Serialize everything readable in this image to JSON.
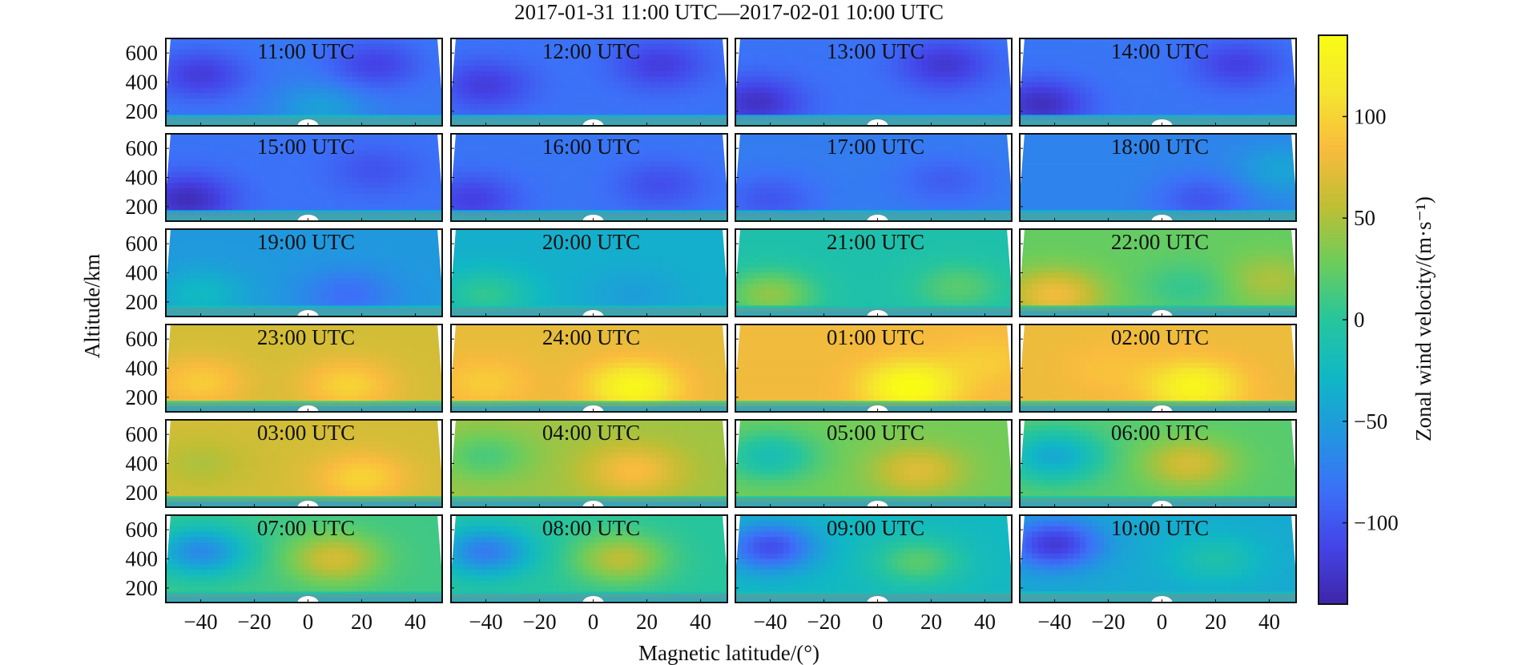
{
  "chart_data": {
    "type": "heatmap",
    "title": "2017-01-31 11:00 UTC—2017-02-01 10:00 UTC",
    "xlabel": "Magnetic latitude/(°)",
    "ylabel": "Altitude/km",
    "colorbar_label": "Zonal wind velocity/(m·s⁻¹)",
    "grid_rows": 6,
    "grid_cols": 4,
    "xlim": [
      -53,
      50
    ],
    "ylim": [
      100,
      700
    ],
    "x_ticks": [
      -40,
      -20,
      0,
      20,
      40
    ],
    "x_tick_labels": [
      "−40",
      "−20",
      "0",
      "20",
      "40"
    ],
    "y_ticks": [
      200,
      400,
      600
    ],
    "y_tick_labels": [
      "200",
      "400",
      "600"
    ],
    "colorbar": {
      "min": -140,
      "max": 140,
      "ticks": [
        100,
        50,
        0,
        -50,
        -100
      ],
      "tick_labels": [
        "100",
        "50",
        "0",
        "−50",
        "−100"
      ],
      "colormap": "parula",
      "colors": [
        "#3e26a8",
        "#4443e7",
        "#3c70f8",
        "#2197df",
        "#10b7c5",
        "#26c59d",
        "#6ccd5b",
        "#c0be34",
        "#f9bb3e",
        "#f5e52f",
        "#f9fb15"
      ]
    },
    "panels": [
      {
        "label": "11:00 UTC",
        "mean": -78,
        "anomalies": [
          {
            "lat": -40,
            "alt": 450,
            "value": -40
          },
          {
            "lat": 25,
            "alt": 520,
            "value": -35
          },
          {
            "lat": 5,
            "alt": 220,
            "value": 30
          }
        ]
      },
      {
        "label": "12:00 UTC",
        "mean": -82,
        "anomalies": [
          {
            "lat": -40,
            "alt": 380,
            "value": -35
          },
          {
            "lat": 25,
            "alt": 520,
            "value": -35
          }
        ]
      },
      {
        "label": "13:00 UTC",
        "mean": -82,
        "anomalies": [
          {
            "lat": -45,
            "alt": 260,
            "value": -45
          },
          {
            "lat": 25,
            "alt": 520,
            "value": -40
          }
        ]
      },
      {
        "label": "14:00 UTC",
        "mean": -80,
        "anomalies": [
          {
            "lat": -45,
            "alt": 250,
            "value": -50
          },
          {
            "lat": 28,
            "alt": 520,
            "value": -35
          }
        ]
      },
      {
        "label": "15:00 UTC",
        "mean": -82,
        "anomalies": [
          {
            "lat": -45,
            "alt": 250,
            "value": -50
          },
          {
            "lat": 25,
            "alt": 450,
            "value": -20
          }
        ]
      },
      {
        "label": "16:00 UTC",
        "mean": -80,
        "anomalies": [
          {
            "lat": -45,
            "alt": 250,
            "value": -35
          },
          {
            "lat": 25,
            "alt": 350,
            "value": -25
          }
        ]
      },
      {
        "label": "17:00 UTC",
        "mean": -75,
        "anomalies": [
          {
            "lat": -40,
            "alt": 250,
            "value": -25
          },
          {
            "lat": 25,
            "alt": 380,
            "value": -20
          }
        ]
      },
      {
        "label": "18:00 UTC",
        "mean": -70,
        "anomalies": [
          {
            "lat": 15,
            "alt": 250,
            "value": -30
          },
          {
            "lat": 45,
            "alt": 450,
            "value": 25
          }
        ]
      },
      {
        "label": "19:00 UTC",
        "mean": -55,
        "anomalies": [
          {
            "lat": 15,
            "alt": 250,
            "value": -30
          },
          {
            "lat": -40,
            "alt": 250,
            "value": 30
          }
        ]
      },
      {
        "label": "20:00 UTC",
        "mean": -35,
        "anomalies": [
          {
            "lat": -40,
            "alt": 250,
            "value": 40
          },
          {
            "lat": 15,
            "alt": 250,
            "value": -15
          }
        ]
      },
      {
        "label": "21:00 UTC",
        "mean": -10,
        "anomalies": [
          {
            "lat": -40,
            "alt": 250,
            "value": 50
          },
          {
            "lat": 30,
            "alt": 300,
            "value": 30
          }
        ]
      },
      {
        "label": "22:00 UTC",
        "mean": 25,
        "anomalies": [
          {
            "lat": -40,
            "alt": 250,
            "value": 55
          },
          {
            "lat": 10,
            "alt": 300,
            "value": -20
          },
          {
            "lat": 40,
            "alt": 350,
            "value": 25
          }
        ]
      },
      {
        "label": "23:00 UTC",
        "mean": 65,
        "anomalies": [
          {
            "lat": -40,
            "alt": 300,
            "value": 30
          },
          {
            "lat": 15,
            "alt": 280,
            "value": 35
          }
        ]
      },
      {
        "label": "24:00 UTC",
        "mean": 75,
        "anomalies": [
          {
            "lat": 15,
            "alt": 270,
            "value": 60
          },
          {
            "lat": -40,
            "alt": 300,
            "value": 20
          }
        ]
      },
      {
        "label": "01:00 UTC",
        "mean": 80,
        "anomalies": [
          {
            "lat": 12,
            "alt": 270,
            "value": 65
          },
          {
            "lat": 40,
            "alt": 450,
            "value": 15
          }
        ]
      },
      {
        "label": "02:00 UTC",
        "mean": 78,
        "anomalies": [
          {
            "lat": 12,
            "alt": 270,
            "value": 55
          },
          {
            "lat": -20,
            "alt": 400,
            "value": 10
          }
        ]
      },
      {
        "label": "03:00 UTC",
        "mean": 65,
        "anomalies": [
          {
            "lat": 20,
            "alt": 300,
            "value": 35
          },
          {
            "lat": -40,
            "alt": 400,
            "value": -15
          }
        ]
      },
      {
        "label": "04:00 UTC",
        "mean": 45,
        "anomalies": [
          {
            "lat": 15,
            "alt": 350,
            "value": 40
          },
          {
            "lat": -40,
            "alt": 450,
            "value": -30
          }
        ]
      },
      {
        "label": "05:00 UTC",
        "mean": 30,
        "anomalies": [
          {
            "lat": 15,
            "alt": 350,
            "value": 40
          },
          {
            "lat": -40,
            "alt": 450,
            "value": -45
          }
        ]
      },
      {
        "label": "06:00 UTC",
        "mean": 20,
        "anomalies": [
          {
            "lat": 10,
            "alt": 400,
            "value": 45
          },
          {
            "lat": -40,
            "alt": 450,
            "value": -60
          }
        ]
      },
      {
        "label": "07:00 UTC",
        "mean": 10,
        "anomalies": [
          {
            "lat": 10,
            "alt": 400,
            "value": 55
          },
          {
            "lat": -40,
            "alt": 450,
            "value": -75
          }
        ]
      },
      {
        "label": "08:00 UTC",
        "mean": 0,
        "anomalies": [
          {
            "lat": 10,
            "alt": 400,
            "value": 55
          },
          {
            "lat": -40,
            "alt": 450,
            "value": -75
          }
        ]
      },
      {
        "label": "09:00 UTC",
        "mean": -25,
        "anomalies": [
          {
            "lat": -40,
            "alt": 480,
            "value": -80
          },
          {
            "lat": 15,
            "alt": 380,
            "value": 45
          }
        ]
      },
      {
        "label": "10:00 UTC",
        "mean": -40,
        "anomalies": [
          {
            "lat": -40,
            "alt": 500,
            "value": -80
          },
          {
            "lat": 20,
            "alt": 400,
            "value": 30
          }
        ]
      }
    ]
  }
}
